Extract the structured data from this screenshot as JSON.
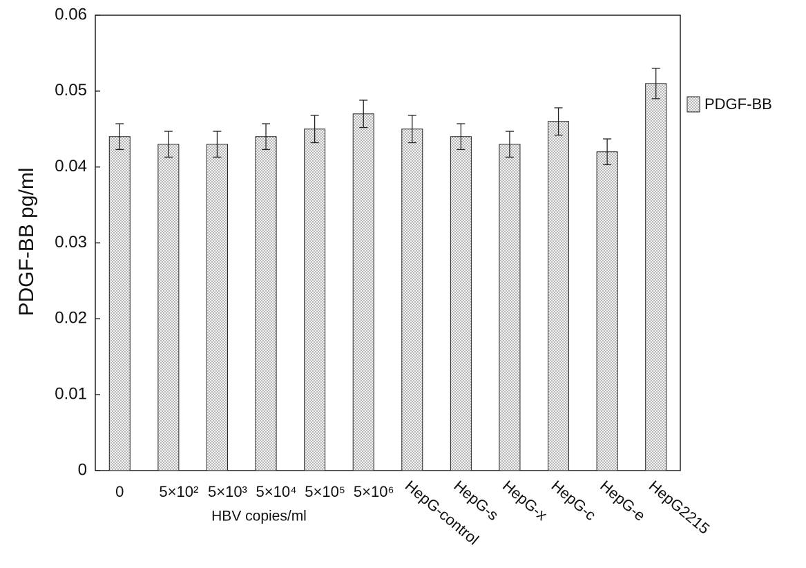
{
  "chart_data": {
    "type": "bar",
    "y_label": "PDGF-BB pg/ml",
    "x_annotation": "HBV copies/ml",
    "categories": [
      "0",
      "5×10²",
      "5×10³",
      "5×10⁴",
      "5×10⁵",
      "5×10⁶",
      "HepG-control",
      "HepG-s",
      "HepG-x",
      "HepG-c",
      "HepG-e",
      "HepG2215"
    ],
    "series": [
      {
        "name": "PDGF-BB",
        "color": "#6e6e6e",
        "values": [
          0.044,
          0.043,
          0.043,
          0.044,
          0.045,
          0.047,
          0.045,
          0.044,
          0.043,
          0.046,
          0.042,
          0.051
        ],
        "errors": [
          0.0017,
          0.0017,
          0.0017,
          0.0017,
          0.0018,
          0.0018,
          0.0018,
          0.0017,
          0.0017,
          0.0018,
          0.0017,
          0.002
        ]
      }
    ],
    "ylim": [
      0,
      0.06
    ],
    "yticks": [
      0,
      0.01,
      0.02,
      0.03,
      0.04,
      0.05,
      0.06
    ],
    "legend": "right",
    "grid": false
  }
}
